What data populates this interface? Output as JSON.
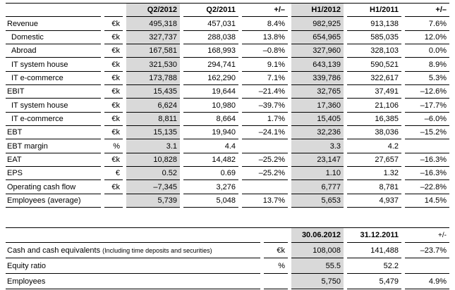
{
  "colors": {
    "shade": "#d9d9d9",
    "border": "#000000",
    "text": "#000000",
    "background": "#ffffff"
  },
  "table1": {
    "headers": [
      "",
      "",
      "Q2/2012",
      "Q2/2011",
      "+/–",
      "H1/2012",
      "H1/2011",
      "+/–"
    ],
    "shaded_columns": [
      "Q2/2012",
      "H1/2012"
    ],
    "rows": [
      {
        "label": "Revenue",
        "indent": false,
        "unit": "€k",
        "cells": [
          "495,318",
          "457,031",
          "8.4%",
          "982,925",
          "913,138",
          "7.6%"
        ]
      },
      {
        "label": "Domestic",
        "indent": true,
        "unit": "€k",
        "cells": [
          "327,737",
          "288,038",
          "13.8%",
          "654,965",
          "585,035",
          "12.0%"
        ]
      },
      {
        "label": "Abroad",
        "indent": true,
        "unit": "€k",
        "cells": [
          "167,581",
          "168,993",
          "–0.8%",
          "327,960",
          "328,103",
          "0.0%"
        ]
      },
      {
        "label": "IT system house",
        "indent": true,
        "unit": "€k",
        "cells": [
          "321,530",
          "294,741",
          "9.1%",
          "643,139",
          "590,521",
          "8.9%"
        ]
      },
      {
        "label": "IT e-commerce",
        "indent": true,
        "unit": "€k",
        "cells": [
          "173,788",
          "162,290",
          "7.1%",
          "339,786",
          "322,617",
          "5.3%"
        ]
      },
      {
        "label": "EBIT",
        "indent": false,
        "unit": "€k",
        "cells": [
          "15,435",
          "19,644",
          "–21.4%",
          "32,765",
          "37,491",
          "–12.6%"
        ]
      },
      {
        "label": "IT system house",
        "indent": true,
        "unit": "€k",
        "cells": [
          "6,624",
          "10,980",
          "–39.7%",
          "17,360",
          "21,106",
          "–17.7%"
        ]
      },
      {
        "label": "IT e-commerce",
        "indent": true,
        "unit": "€k",
        "cells": [
          "8,811",
          "8,664",
          "1.7%",
          "15,405",
          "16,385",
          "–6.0%"
        ]
      },
      {
        "label": "EBT",
        "indent": false,
        "unit": "€k",
        "cells": [
          "15,135",
          "19,940",
          "–24.1%",
          "32,236",
          "38,036",
          "–15.2%"
        ]
      },
      {
        "label": "EBT margin",
        "indent": false,
        "unit": "%",
        "cells": [
          "3.1",
          "4.4",
          "",
          "3.3",
          "4.2",
          ""
        ]
      },
      {
        "label": "EAT",
        "indent": false,
        "unit": "€k",
        "cells": [
          "10,828",
          "14,482",
          "–25.2%",
          "23,147",
          "27,657",
          "–16.3%"
        ]
      },
      {
        "label": "EPS",
        "indent": false,
        "unit": "€",
        "cells": [
          "0.52",
          "0.69",
          "–25.2%",
          "1.10",
          "1.32",
          "–16.3%"
        ]
      },
      {
        "label": "Operating cash flow",
        "indent": false,
        "unit": "€k",
        "cells": [
          "–7,345",
          "3,276",
          "",
          "6,777",
          "8,781",
          "–22.8%"
        ]
      },
      {
        "label": "Employees (average)",
        "indent": false,
        "unit": "",
        "cells": [
          "5,739",
          "5,048",
          "13.7%",
          "5,653",
          "4,937",
          "14.5%"
        ]
      }
    ]
  },
  "table2": {
    "headers": [
      "",
      "",
      "30.06.2012",
      "31.12.2011",
      "+/-"
    ],
    "shaded_columns": [
      "30.06.2012"
    ],
    "rows": [
      {
        "label": "Cash and cash equivalents",
        "note": "(Including time deposits and securities)",
        "unit": "€k",
        "cells": [
          "108,008",
          "141,488",
          "–23.7%"
        ]
      },
      {
        "label": "Equity ratio",
        "note": "",
        "unit": "%",
        "cells": [
          "55.5",
          "52.2",
          ""
        ]
      },
      {
        "label": "Employees",
        "note": "",
        "unit": "",
        "cells": [
          "5,750",
          "5,479",
          "4.9%"
        ]
      }
    ]
  }
}
